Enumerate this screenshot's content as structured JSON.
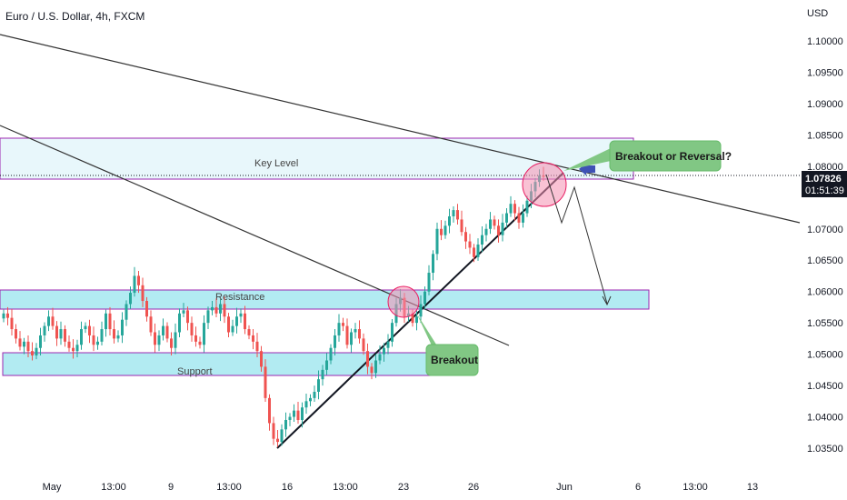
{
  "title": "Euro / U.S. Dollar, 4h, FXCM",
  "currency": "USD",
  "current_price": {
    "value": "1.07826",
    "countdown": "01:51:39"
  },
  "annotations": {
    "key_level": "Key Level",
    "resistance": "Resistance",
    "support": "Support",
    "breakout": "Breakout",
    "breakout_or_reversal": "Breakout or Reversal?"
  },
  "colors": {
    "bull": "#26a69a",
    "bear": "#ef5350",
    "zone_fill": "#b2ebf2",
    "zone_border": "#9c27b0",
    "key_fill": "#e8f7fb",
    "callout": "#81c784",
    "circle": "#f48fb1",
    "arrow": "#3f51b5",
    "price_tag": "#131722"
  },
  "chart_data": {
    "type": "candlestick",
    "title": "Euro / U.S. Dollar, 4h, FXCM",
    "ylabel": "USD",
    "ylim": [
      1.0325,
      1.1055
    ],
    "y_ticks": [
      "1.10000",
      "1.09500",
      "1.09000",
      "1.08500",
      "1.08000",
      "1.07500",
      "1.07000",
      "1.06500",
      "1.06000",
      "1.05500",
      "1.05000",
      "1.04500",
      "1.04000",
      "1.03500"
    ],
    "x_ticks": [
      "May",
      "13:00",
      "9",
      "13:00",
      "16",
      "13:00",
      "23",
      "26",
      "Jun",
      "6",
      "13:00",
      "13"
    ],
    "zones": [
      {
        "name": "Key Level",
        "low": 1.078,
        "high": 1.0845
      },
      {
        "name": "Resistance",
        "low": 1.0573,
        "high": 1.06
      },
      {
        "name": "Support",
        "low": 1.0468,
        "high": 1.05
      }
    ],
    "closes": [
      1.0565,
      1.0558,
      1.054,
      1.0525,
      1.0512,
      1.052,
      1.0505,
      1.0498,
      1.051,
      1.053,
      1.0545,
      1.056,
      1.0545,
      1.0525,
      1.054,
      1.052,
      1.051,
      1.0505,
      1.0515,
      1.054,
      1.0545,
      1.053,
      1.0515,
      1.052,
      1.054,
      1.0565,
      1.054,
      1.0525,
      1.053,
      1.0555,
      1.058,
      1.0598,
      1.0625,
      1.061,
      1.0585,
      1.056,
      1.0535,
      1.0515,
      1.053,
      1.0545,
      1.0525,
      1.051,
      1.0535,
      1.0565,
      1.057,
      1.055,
      1.053,
      1.052,
      1.0515,
      1.055,
      1.057,
      1.0575,
      1.0565,
      1.058,
      1.056,
      1.0535,
      1.0545,
      1.056,
      1.0565,
      1.054,
      1.053,
      1.052,
      1.0505,
      1.048,
      1.043,
      1.039,
      1.0365,
      1.036,
      1.038,
      1.0395,
      1.04,
      1.041,
      1.0395,
      1.0415,
      1.0425,
      1.043,
      1.044,
      1.046,
      1.0475,
      1.049,
      1.051,
      1.053,
      1.055,
      1.0545,
      1.0515,
      1.0535,
      1.054,
      1.0525,
      1.0505,
      1.048,
      1.047,
      1.049,
      1.05,
      1.051,
      1.052,
      1.055,
      1.058,
      1.059,
      1.056,
      1.0565,
      1.055,
      1.056,
      1.058,
      1.06,
      1.063,
      1.066,
      1.07,
      1.069,
      1.0705,
      1.072,
      1.073,
      1.0715,
      1.0695,
      1.068,
      1.067,
      1.0655,
      1.0675,
      1.069,
      1.07,
      1.0715,
      1.0705,
      1.069,
      1.071,
      1.0725,
      1.074,
      1.0725,
      1.071,
      1.0725,
      1.0745,
      1.076,
      1.0775,
      1.0785,
      1.0783
    ]
  }
}
